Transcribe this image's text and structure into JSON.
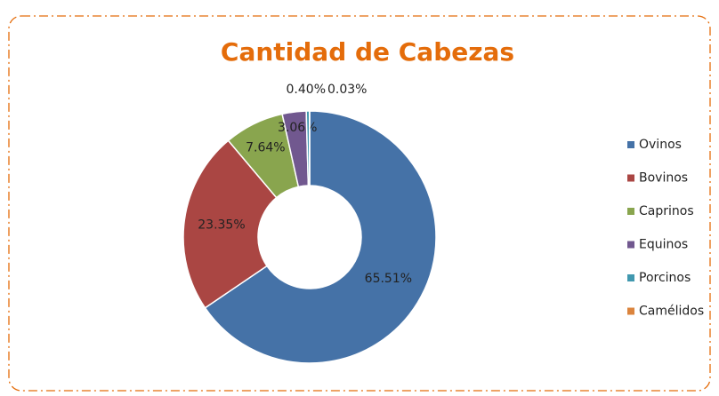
{
  "chart_data": {
    "type": "doughnut",
    "title": "Cantidad de Cabezas",
    "categories": [
      "Ovinos",
      "Bovinos",
      "Caprinos",
      "Equinos",
      "Porcinos",
      "Camélidos"
    ],
    "values": [
      65.51,
      23.35,
      7.64,
      3.06,
      0.4,
      0.03
    ],
    "value_labels": [
      "65.51%",
      "23.35%",
      "7.64%",
      "3.06%",
      "0.40%",
      "0.03%"
    ],
    "colors": [
      "#4572A7",
      "#AA4643",
      "#89A54E",
      "#71588F",
      "#4198AF",
      "#DB843D"
    ],
    "legend": "right"
  }
}
